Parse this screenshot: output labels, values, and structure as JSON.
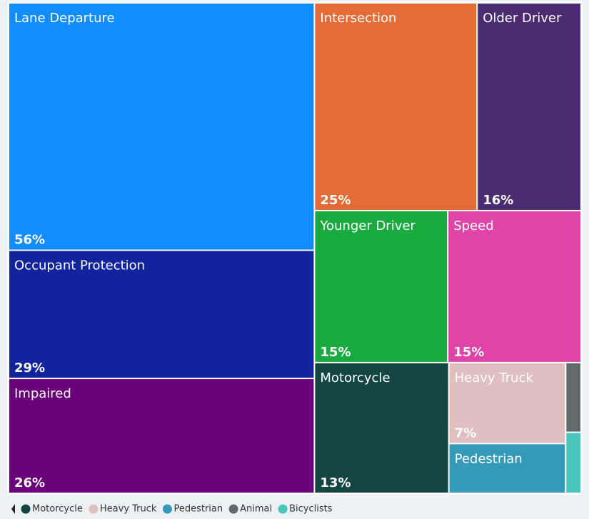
{
  "chart_data": {
    "type": "treemap",
    "categories": [
      "Lane Departure",
      "Occupant Protection",
      "Impaired",
      "Intersection",
      "Older Driver",
      "Younger Driver",
      "Speed",
      "Motorcycle",
      "Heavy Truck",
      "Pedestrian",
      "Animal",
      "Bicyclists"
    ],
    "values": [
      56,
      29,
      26,
      25,
      16,
      15,
      15,
      13,
      7,
      4.3,
      0.8,
      0.7
    ],
    "value_labels": [
      "56%",
      "29%",
      "26%",
      "25%",
      "16%",
      "15%",
      "15%",
      "13%",
      "7%",
      null,
      null,
      null
    ],
    "colors": [
      "#118dff",
      "#12239e",
      "#6b007b",
      "#e66c37",
      "#4b2c72",
      "#1aab40",
      "#e044a7",
      "#134541",
      "#dfbfbf",
      "#3599b8",
      "#5f6b6d",
      "#4ac5bb"
    ],
    "legend": "bottom-left"
  }
}
